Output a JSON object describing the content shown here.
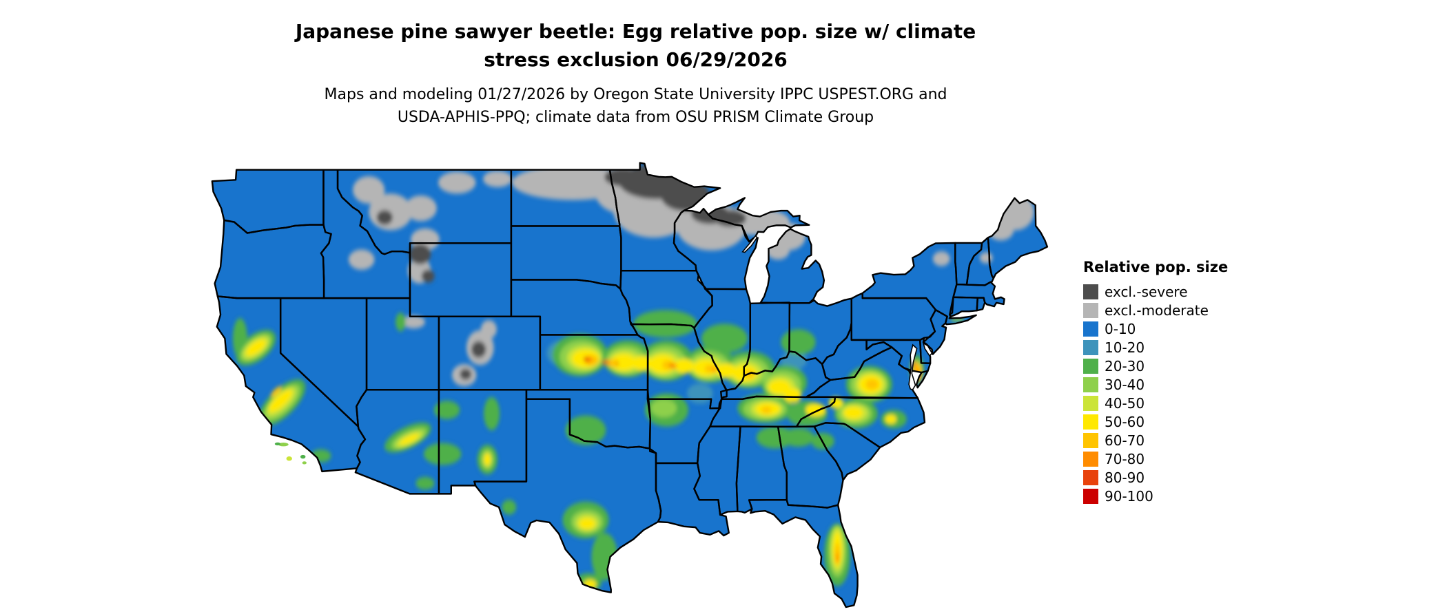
{
  "title": {
    "line1": "Japanese pine sawyer beetle: Egg relative pop. size w/ climate",
    "line2": "stress exclusion 06/29/2026"
  },
  "subtitle": {
    "line1": "Maps and modeling 01/27/2026 by Oregon State University IPPC USPEST.ORG and",
    "line2": "USDA-APHIS-PPQ; climate data from OSU PRISM Climate Group"
  },
  "legend": {
    "title": "Relative pop. size",
    "entries": [
      {
        "label": "excl.-severe",
        "color": "#4d4d4d"
      },
      {
        "label": "excl.-moderate",
        "color": "#b5b5b5"
      },
      {
        "label": "0-10",
        "color": "#1874cd"
      },
      {
        "label": "10-20",
        "color": "#3d93bb"
      },
      {
        "label": "20-30",
        "color": "#4fb04a"
      },
      {
        "label": "30-40",
        "color": "#8ed04b"
      },
      {
        "label": "40-50",
        "color": "#cbe438"
      },
      {
        "label": "50-60",
        "color": "#ffe800"
      },
      {
        "label": "60-70",
        "color": "#ffc400"
      },
      {
        "label": "70-80",
        "color": "#ff8c00"
      },
      {
        "label": "80-90",
        "color": "#e8420c"
      },
      {
        "label": "90-100",
        "color": "#cc0000"
      }
    ]
  },
  "map": {
    "region": "Continental United States",
    "outline_color": "#000000",
    "water_color": "#ffffff"
  },
  "chart_data": {
    "type": "heatmap",
    "subtype": "choropleth_raster_map",
    "region": "Continental United States",
    "title": "Japanese pine sawyer beetle: Egg relative pop. size w/ climate stress exclusion 06/29/2026",
    "subtitle": "Maps and modeling 01/27/2026 by Oregon State University IPPC USPEST.ORG and USDA-APHIS-PPQ; climate data from OSU PRISM Climate Group",
    "legend_title": "Relative pop. size",
    "classes": [
      {
        "label": "excl.-severe",
        "color": "#4d4d4d"
      },
      {
        "label": "excl.-moderate",
        "color": "#b5b5b5"
      },
      {
        "label": "0-10",
        "color": "#1874cd"
      },
      {
        "label": "10-20",
        "color": "#3d93bb"
      },
      {
        "label": "20-30",
        "color": "#4fb04a"
      },
      {
        "label": "30-40",
        "color": "#8ed04b"
      },
      {
        "label": "40-50",
        "color": "#cbe438"
      },
      {
        "label": "50-60",
        "color": "#ffe800"
      },
      {
        "label": "60-70",
        "color": "#ffc400"
      },
      {
        "label": "70-80",
        "color": "#ff8c00"
      },
      {
        "label": "80-90",
        "color": "#e8420c"
      },
      {
        "label": "90-100",
        "color": "#cc0000"
      }
    ],
    "spatial_summary": [
      "Majority of the continental US mapped as 0-10 relative pop. size (blue)",
      "excl.-severe (dark gray) over northern Minnesota, the northern North Dakota edge, northern Wisconsin, western Upper Michigan, Yellowstone area and high Colorado Rockies",
      "excl.-moderate (light gray) band across North Dakota, central Minnesota, northern Wisconsin/Michigan, western Montana mountains, northern Maine and northern New England",
      "Yellow (40-70) band from central Kansas through Missouri, southern Illinois and Indiana, Kentucky, Tennessee, to the Virginia and North Carolina piedmont",
      "Orange-to-red (70-100) specks in central Kansas, Missouri, and the Chesapeake/Delmarva area",
      "Yellow-green corridors in California's Central Valley, Arizona's Mogollon Rim, southern New Mexico mountains, central Texas, coastal Texas bend, and central Florida"
    ]
  }
}
